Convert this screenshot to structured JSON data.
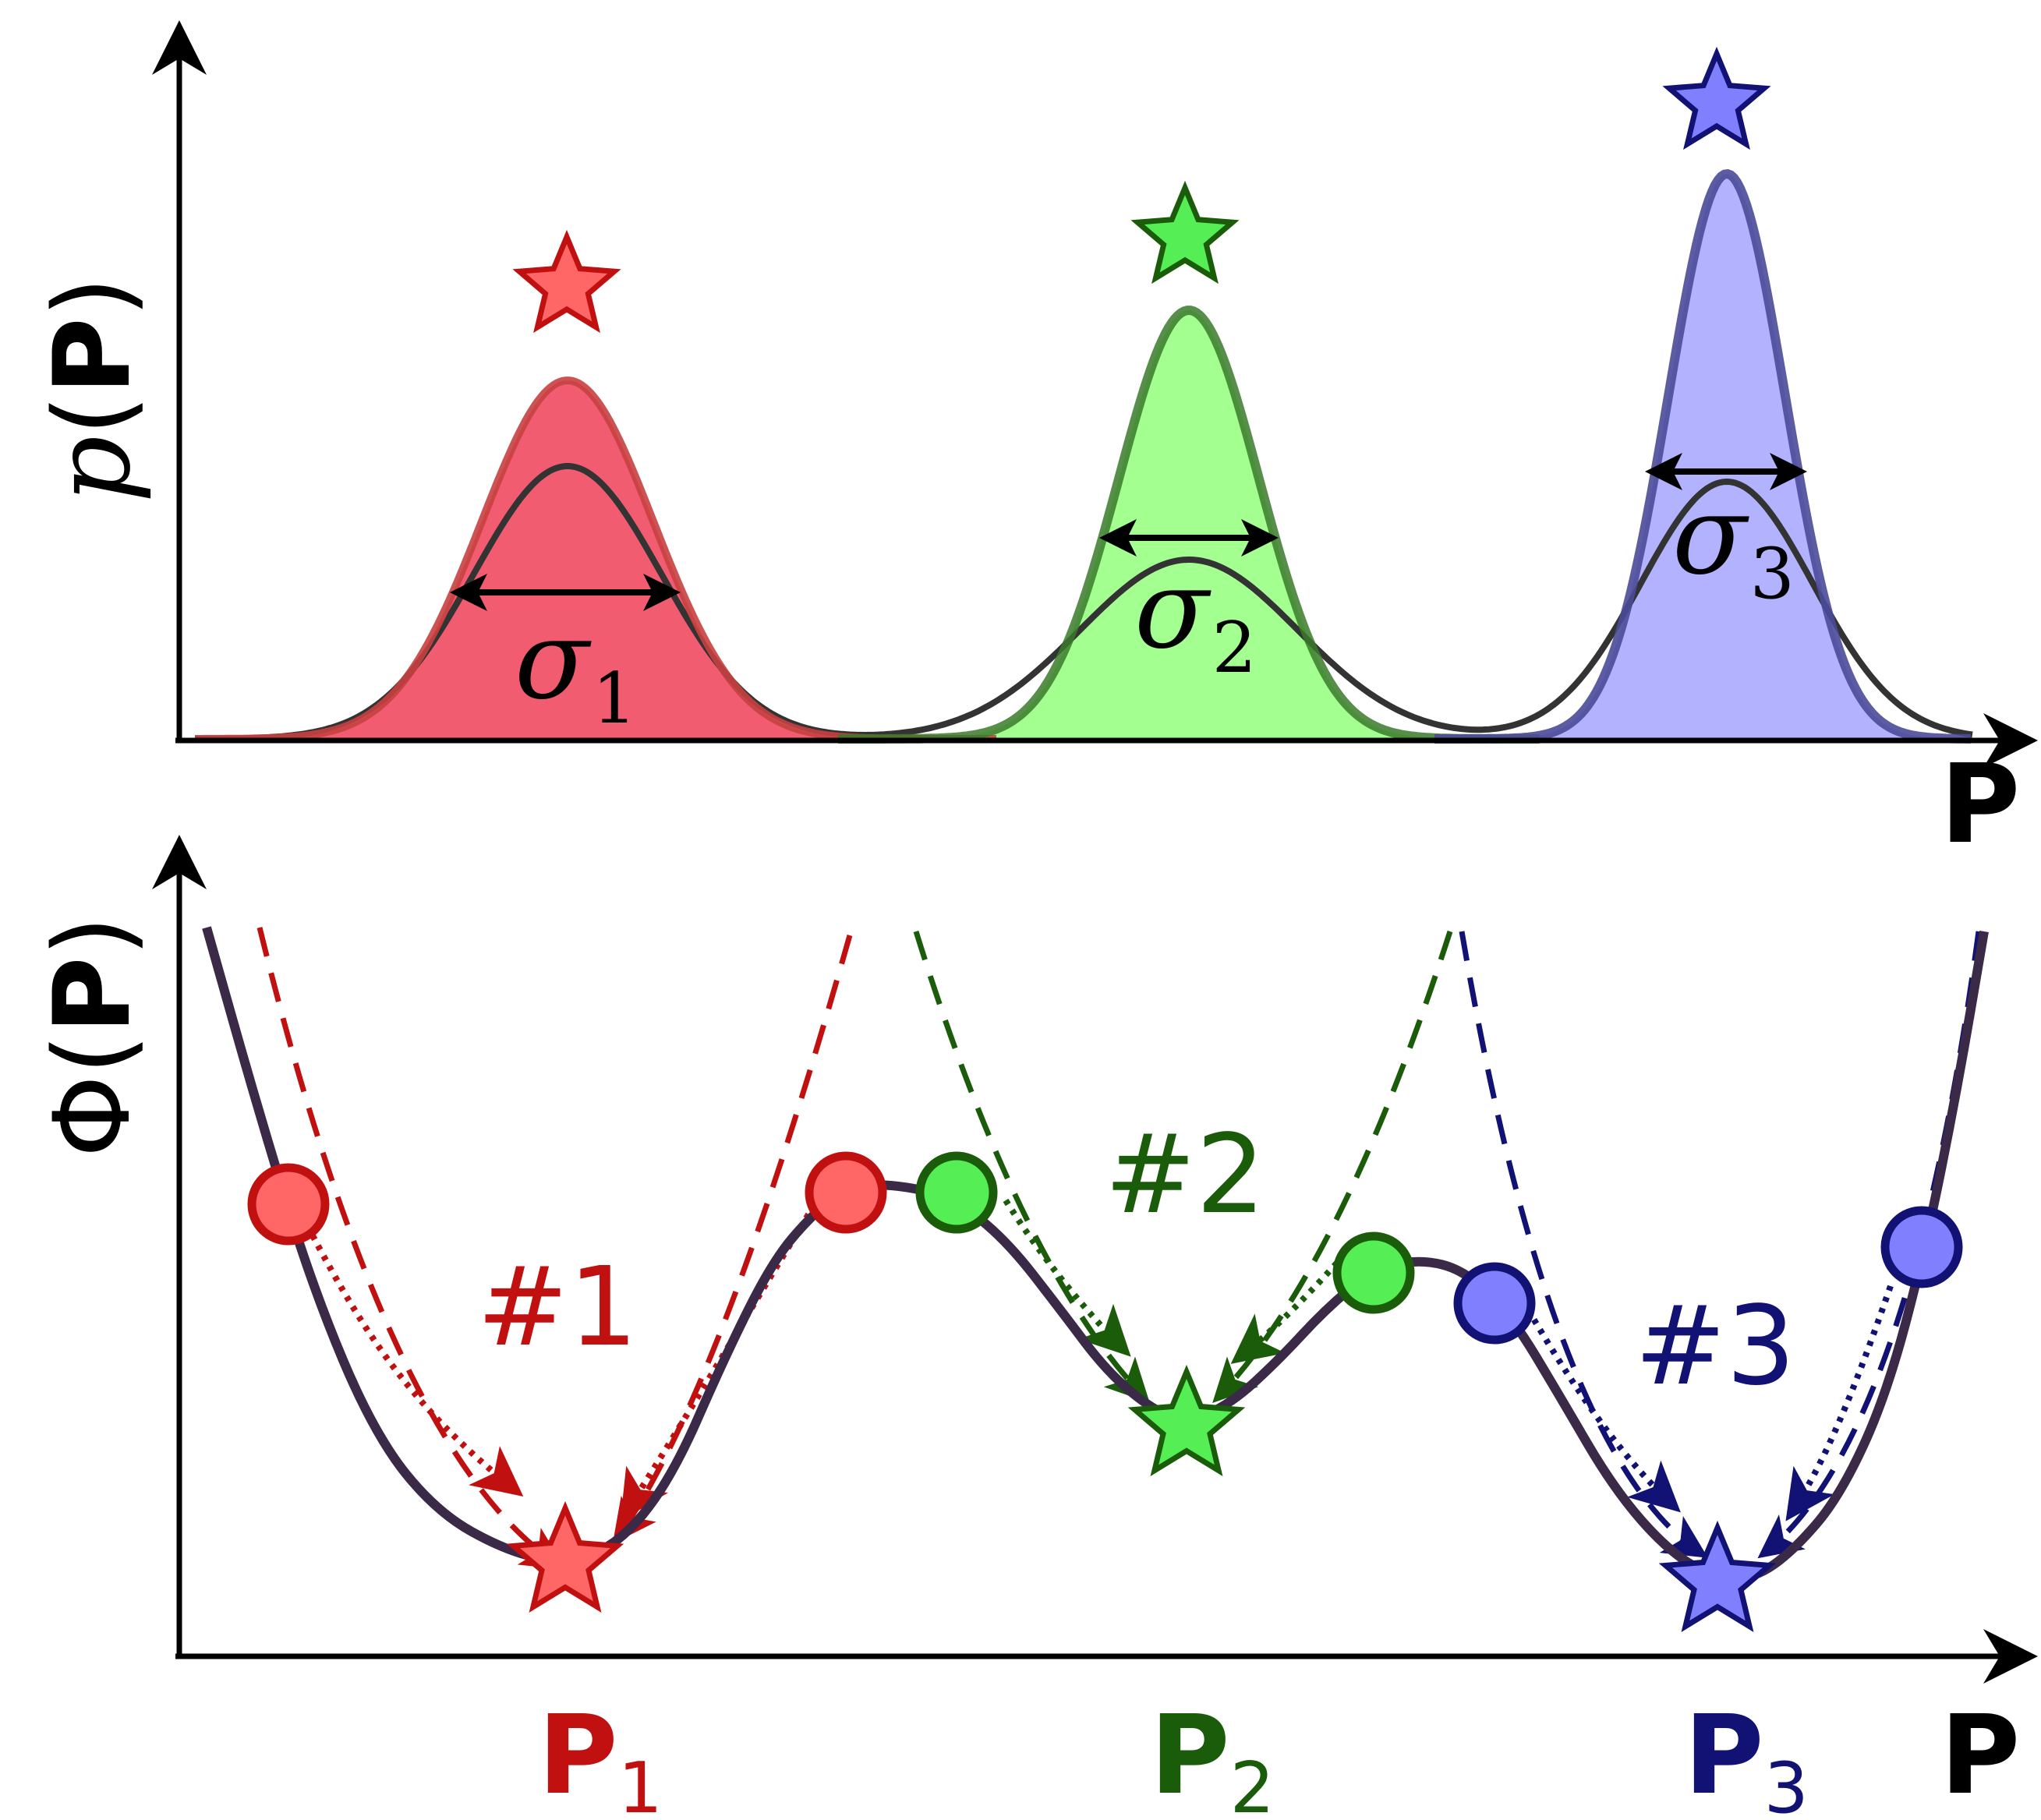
{
  "colors": {
    "red": "#c01010",
    "red_fill": "#f04058",
    "red_light": "#ff6666",
    "green": "#1a5c0a",
    "green_fill": "#66ff44",
    "green_light": "#55ee55",
    "blue": "#121275",
    "blue_fill": "#8888ff",
    "blue_light": "#8080ff",
    "curve": "#3a2a48",
    "axis": "#000000"
  },
  "top_panel": {
    "ylabel_prefix": "p",
    "ylabel_open": "(",
    "ylabel_bold": "P",
    "ylabel_close": ")",
    "xlabel": "P",
    "sigma_symbol": "σ",
    "sigma_subscripts": [
      "1",
      "2",
      "3"
    ]
  },
  "bottom_panel": {
    "ylabel_prefix": "Φ",
    "ylabel_open": "(",
    "ylabel_bold": "P",
    "ylabel_close": ")",
    "xlabel": "P",
    "well_labels": [
      "#1",
      "#2",
      "#3"
    ],
    "minimum_label_main": "P",
    "minimum_subscripts": [
      "1",
      "2",
      "3"
    ]
  },
  "icons": [
    "star-icon",
    "circle-marker",
    "arrow-head"
  ]
}
